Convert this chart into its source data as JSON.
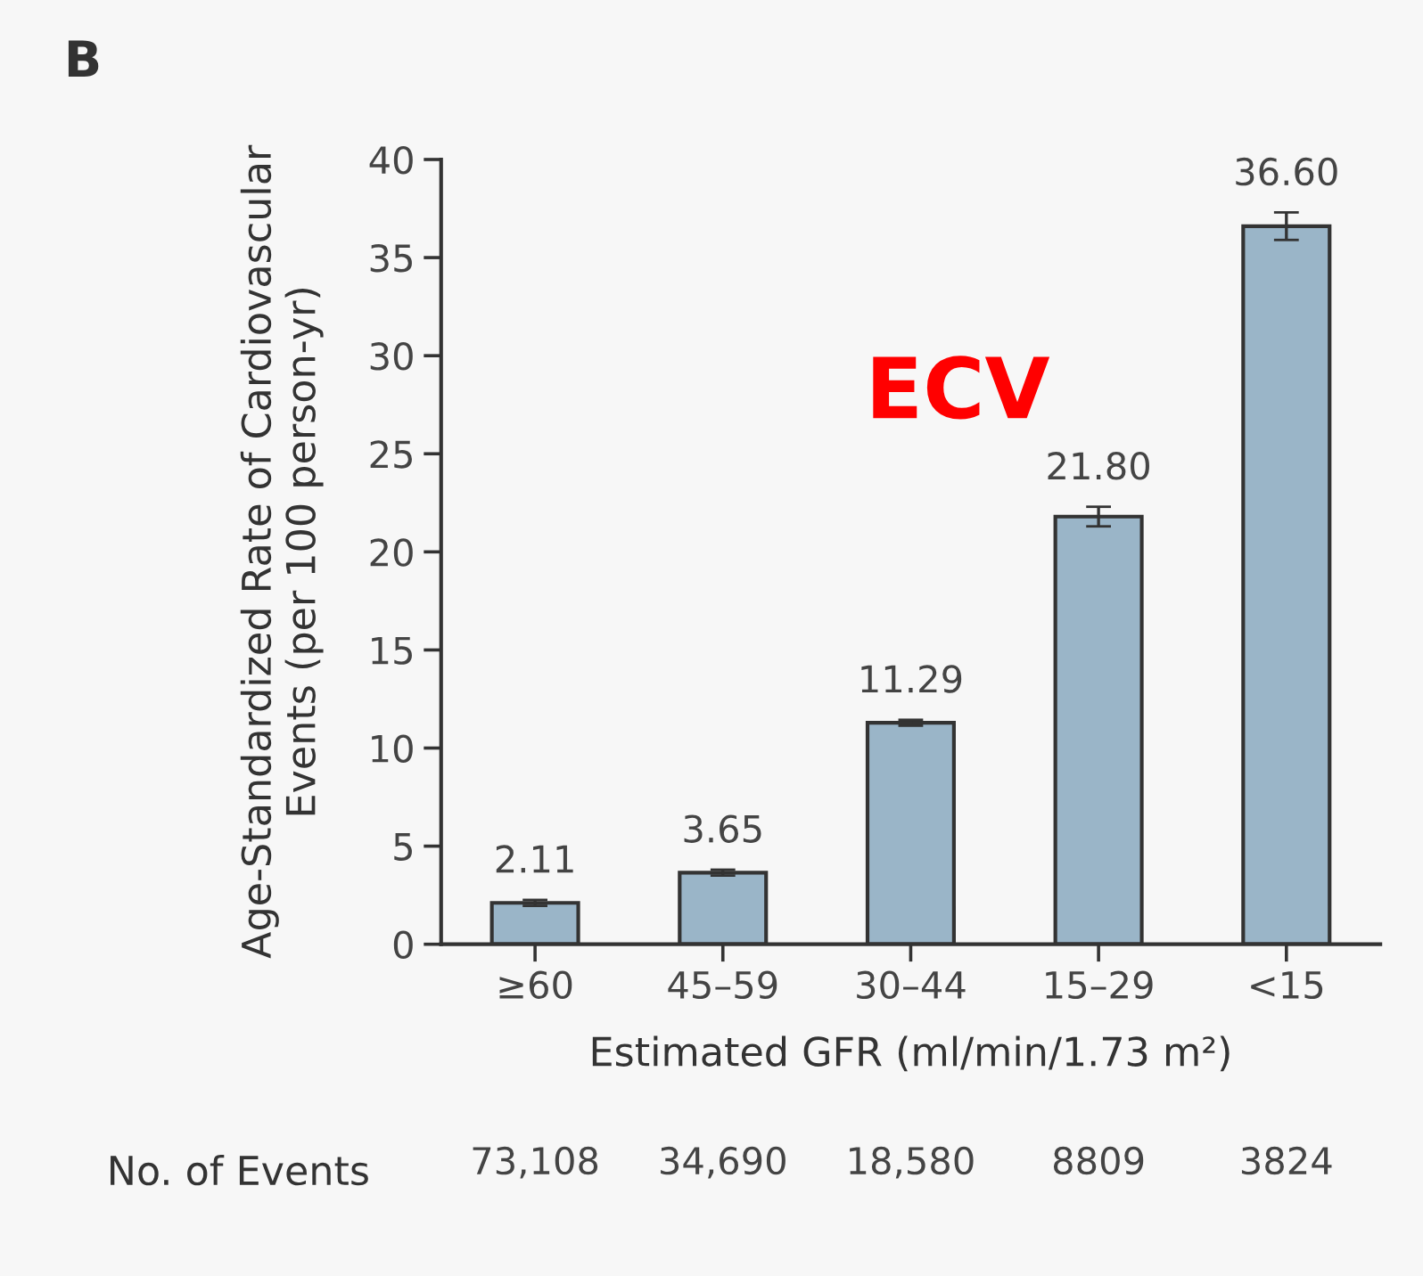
{
  "chart_data": {
    "type": "bar",
    "xlabel": "Estimated GFR (ml/min/1.73 m²)",
    "ylabel": "Age-Standardized Rate of Cardiovascular\nEvents (per 100 person-yr)",
    "categories": [
      "≥60",
      "45–59",
      "30–44",
      "15–29",
      "<15"
    ],
    "values": [
      2.11,
      3.65,
      11.29,
      21.8,
      36.6
    ],
    "value_labels": [
      "2.11",
      "3.65",
      "11.29",
      "21.80",
      "36.60"
    ],
    "errors": [
      0.15,
      0.15,
      0.15,
      0.5,
      0.7
    ],
    "color": "#9ab5c8",
    "ylim": [
      0,
      40
    ],
    "yticks": [
      0,
      5,
      10,
      15,
      20,
      25,
      30,
      35,
      40
    ],
    "grid": false,
    "annotations": [
      "B",
      "ECV",
      "No. of Events",
      "73,108",
      "34,690",
      "18,580",
      "8809",
      "3824"
    ]
  }
}
